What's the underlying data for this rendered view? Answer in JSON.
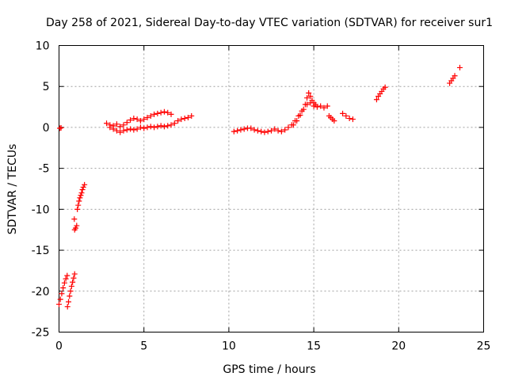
{
  "chart_data": {
    "type": "scatter",
    "title": "Day 258 of 2021, Sidereal Day-to-day VTEC variation (SDTVAR) for receiver sur1",
    "xlabel": "GPS time / hours",
    "ylabel": "SDTVAR / TECUs",
    "xlim": [
      0,
      25
    ],
    "ylim": [
      -25,
      10
    ],
    "x_ticks": [
      0,
      5,
      10,
      15,
      20,
      25
    ],
    "y_ticks": [
      -25,
      -20,
      -15,
      -10,
      -5,
      0,
      5,
      10
    ],
    "grid": true,
    "marker": "+",
    "color": "#ff0000",
    "series": [
      {
        "values": [
          [
            0.05,
            -0.1
          ],
          [
            0.12,
            -0.05
          ],
          [
            0.0,
            -21.6
          ],
          [
            0.08,
            -21.0
          ],
          [
            0.16,
            -20.3
          ],
          [
            0.24,
            -19.6
          ],
          [
            0.32,
            -19.0
          ],
          [
            0.4,
            -18.5
          ],
          [
            0.48,
            -18.1
          ],
          [
            0.5,
            -21.9
          ],
          [
            0.56,
            -21.3
          ],
          [
            0.62,
            -20.6
          ],
          [
            0.68,
            -20.0
          ],
          [
            0.74,
            -19.4
          ],
          [
            0.8,
            -18.9
          ],
          [
            0.86,
            -18.4
          ],
          [
            0.92,
            -17.9
          ],
          [
            0.9,
            -11.2
          ],
          [
            0.92,
            -12.5
          ],
          [
            0.98,
            -12.3
          ],
          [
            1.04,
            -12.0
          ],
          [
            1.08,
            -10.0
          ],
          [
            1.13,
            -9.5
          ],
          [
            1.18,
            -9.0
          ],
          [
            1.23,
            -8.6
          ],
          [
            1.28,
            -8.3
          ],
          [
            1.33,
            -8.0
          ],
          [
            1.38,
            -7.6
          ],
          [
            1.43,
            -7.3
          ],
          [
            1.5,
            -7.0
          ],
          [
            2.8,
            0.5
          ],
          [
            3.0,
            0.3
          ],
          [
            3.2,
            0.2
          ],
          [
            3.4,
            0.4
          ],
          [
            3.6,
            0.1
          ],
          [
            3.8,
            0.3
          ],
          [
            4.0,
            0.6
          ],
          [
            4.2,
            0.9
          ],
          [
            4.4,
            1.1
          ],
          [
            4.6,
            1.0
          ],
          [
            4.8,
            0.8
          ],
          [
            5.0,
            1.0
          ],
          [
            5.2,
            1.2
          ],
          [
            5.4,
            1.4
          ],
          [
            5.6,
            1.6
          ],
          [
            5.8,
            1.7
          ],
          [
            6.0,
            1.8
          ],
          [
            6.2,
            1.9
          ],
          [
            6.4,
            1.8
          ],
          [
            6.6,
            1.6
          ],
          [
            3.0,
            0.0
          ],
          [
            3.2,
            -0.2
          ],
          [
            3.4,
            -0.4
          ],
          [
            3.6,
            -0.6
          ],
          [
            3.8,
            -0.4
          ],
          [
            4.0,
            -0.3
          ],
          [
            4.2,
            -0.2
          ],
          [
            4.4,
            -0.3
          ],
          [
            4.6,
            -0.2
          ],
          [
            4.8,
            0.0
          ],
          [
            5.0,
            -0.1
          ],
          [
            5.2,
            0.0
          ],
          [
            5.4,
            0.1
          ],
          [
            5.6,
            0.0
          ],
          [
            5.8,
            0.1
          ],
          [
            6.0,
            0.2
          ],
          [
            6.2,
            0.1
          ],
          [
            6.4,
            0.2
          ],
          [
            6.6,
            0.3
          ],
          [
            6.8,
            0.5
          ],
          [
            7.0,
            0.8
          ],
          [
            7.2,
            1.0
          ],
          [
            7.4,
            1.1
          ],
          [
            7.6,
            1.2
          ],
          [
            7.8,
            1.4
          ],
          [
            10.3,
            -0.5
          ],
          [
            10.5,
            -0.4
          ],
          [
            10.7,
            -0.3
          ],
          [
            10.9,
            -0.2
          ],
          [
            11.1,
            -0.1
          ],
          [
            11.3,
            -0.1
          ],
          [
            11.5,
            -0.3
          ],
          [
            11.7,
            -0.4
          ],
          [
            11.9,
            -0.5
          ],
          [
            12.1,
            -0.6
          ],
          [
            12.3,
            -0.5
          ],
          [
            12.5,
            -0.4
          ],
          [
            12.7,
            -0.2
          ],
          [
            12.9,
            -0.4
          ],
          [
            13.1,
            -0.5
          ],
          [
            13.3,
            -0.3
          ],
          [
            13.5,
            0.0
          ],
          [
            13.7,
            0.3
          ],
          [
            13.9,
            0.8
          ],
          [
            14.1,
            1.4
          ],
          [
            14.3,
            2.0
          ],
          [
            14.5,
            2.8
          ],
          [
            14.6,
            3.6
          ],
          [
            14.7,
            4.2
          ],
          [
            14.8,
            3.8
          ],
          [
            14.9,
            3.3
          ],
          [
            15.0,
            3.0
          ],
          [
            15.1,
            2.8
          ],
          [
            13.8,
            0.3
          ],
          [
            14.0,
            0.8
          ],
          [
            14.2,
            1.5
          ],
          [
            14.4,
            2.2
          ],
          [
            14.6,
            2.8
          ],
          [
            14.8,
            3.0
          ],
          [
            15.0,
            2.6
          ],
          [
            15.2,
            2.5
          ],
          [
            15.4,
            2.6
          ],
          [
            15.6,
            2.4
          ],
          [
            15.8,
            2.6
          ],
          [
            15.9,
            1.4
          ],
          [
            16.0,
            1.2
          ],
          [
            16.1,
            1.0
          ],
          [
            16.2,
            0.8
          ],
          [
            16.7,
            1.7
          ],
          [
            16.9,
            1.4
          ],
          [
            17.1,
            1.1
          ],
          [
            17.3,
            1.0
          ],
          [
            18.7,
            3.4
          ],
          [
            18.8,
            3.8
          ],
          [
            18.9,
            4.1
          ],
          [
            19.0,
            4.4
          ],
          [
            19.1,
            4.7
          ],
          [
            19.2,
            4.9
          ],
          [
            23.0,
            5.4
          ],
          [
            23.1,
            5.7
          ],
          [
            23.2,
            6.0
          ],
          [
            23.3,
            6.3
          ],
          [
            23.6,
            7.3
          ]
        ]
      }
    ]
  }
}
